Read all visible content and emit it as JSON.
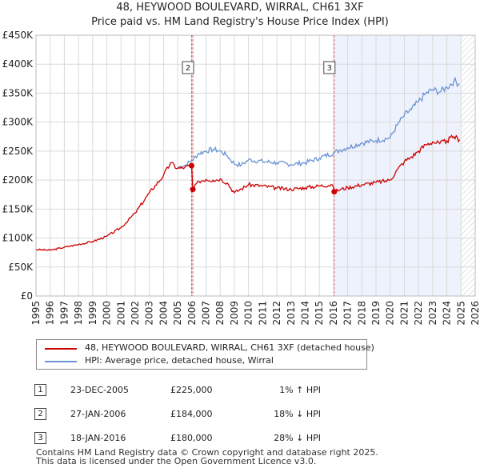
{
  "header": {
    "title": "48, HEYWOOD BOULEVARD, WIRRAL, CH61 3XF",
    "subtitle": "Price paid vs. HM Land Registry's House Price Index (HPI)"
  },
  "colors": {
    "property": "#cc0000",
    "hpi": "#6a93d4",
    "shade": "#eef2fd",
    "grid": "#d9d9d9",
    "marker": "#cc0000"
  },
  "chart_data": {
    "type": "line",
    "x_range": [
      1995,
      2026
    ],
    "y_range": [
      0,
      450000
    ],
    "y_ticks": [
      {
        "value": 0,
        "label": "£0"
      },
      {
        "value": 50000,
        "label": "£50K"
      },
      {
        "value": 100000,
        "label": "£100K"
      },
      {
        "value": 150000,
        "label": "£150K"
      },
      {
        "value": 200000,
        "label": "£200K"
      },
      {
        "value": 250000,
        "label": "£250K"
      },
      {
        "value": 300000,
        "label": "£300K"
      },
      {
        "value": 350000,
        "label": "£350K"
      },
      {
        "value": 400000,
        "label": "£400K"
      },
      {
        "value": 450000,
        "label": "£450K"
      }
    ],
    "x_ticks": [
      "1995",
      "1996",
      "1997",
      "1998",
      "1999",
      "2000",
      "2001",
      "2002",
      "2003",
      "2004",
      "2005",
      "2006",
      "2007",
      "2008",
      "2009",
      "2010",
      "2011",
      "2012",
      "2013",
      "2014",
      "2015",
      "2016",
      "2017",
      "2018",
      "2019",
      "2020",
      "2021",
      "2022",
      "2023",
      "2024",
      "2025",
      "2026"
    ],
    "shaded_from": 2016.05,
    "hatched_from": 2025.0,
    "series": [
      {
        "name": "48, HEYWOOD BOULEVARD, WIRRAL, CH61 3XF (detached house)",
        "key": "property",
        "points": [
          [
            1995,
            80000
          ],
          [
            1996,
            79000
          ],
          [
            1997,
            84000
          ],
          [
            1998,
            89000
          ],
          [
            1999,
            94000
          ],
          [
            2000,
            103000
          ],
          [
            2001,
            118000
          ],
          [
            2002,
            143000
          ],
          [
            2003,
            178000
          ],
          [
            2004,
            208000
          ],
          [
            2004.5,
            230000
          ],
          [
            2005,
            220000
          ],
          [
            2005.5,
            222000
          ],
          [
            2005.98,
            225000
          ],
          [
            2006.07,
            184000
          ],
          [
            2006.5,
            198000
          ],
          [
            2007,
            201000
          ],
          [
            2007.5,
            200000
          ],
          [
            2008,
            202000
          ],
          [
            2008.5,
            195000
          ],
          [
            2009,
            178000
          ],
          [
            2009.5,
            185000
          ],
          [
            2010,
            192000
          ],
          [
            2011,
            190000
          ],
          [
            2012,
            186000
          ],
          [
            2013,
            184000
          ],
          [
            2014,
            187000
          ],
          [
            2015,
            190000
          ],
          [
            2015.9,
            192000
          ],
          [
            2016.05,
            180000
          ],
          [
            2016.5,
            184000
          ],
          [
            2017,
            187000
          ],
          [
            2018,
            192000
          ],
          [
            2019,
            196000
          ],
          [
            2020,
            200000
          ],
          [
            2020.5,
            218000
          ],
          [
            2021,
            232000
          ],
          [
            2021.5,
            240000
          ],
          [
            2022,
            250000
          ],
          [
            2022.5,
            261000
          ],
          [
            2023,
            266000
          ],
          [
            2023.5,
            263000
          ],
          [
            2024,
            268000
          ],
          [
            2024.5,
            275000
          ],
          [
            2024.9,
            270000
          ]
        ]
      },
      {
        "name": "HPI: Average price, detached house, Wirral",
        "key": "hpi",
        "points": [
          [
            2005,
            222000
          ],
          [
            2005.5,
            225000
          ],
          [
            2006,
            234000
          ],
          [
            2006.5,
            246000
          ],
          [
            2007,
            250000
          ],
          [
            2007.5,
            253000
          ],
          [
            2008,
            250000
          ],
          [
            2008.5,
            242000
          ],
          [
            2009,
            228000
          ],
          [
            2009.5,
            226000
          ],
          [
            2010,
            235000
          ],
          [
            2011,
            232000
          ],
          [
            2012,
            230000
          ],
          [
            2013,
            227000
          ],
          [
            2014,
            230000
          ],
          [
            2015,
            238000
          ],
          [
            2016,
            247000
          ],
          [
            2016.5,
            252000
          ],
          [
            2017,
            256000
          ],
          [
            2018,
            264000
          ],
          [
            2019,
            268000
          ],
          [
            2020,
            273000
          ],
          [
            2020.5,
            295000
          ],
          [
            2021,
            312000
          ],
          [
            2021.5,
            322000
          ],
          [
            2022,
            335000
          ],
          [
            2022.5,
            349000
          ],
          [
            2023,
            356000
          ],
          [
            2023.5,
            352000
          ],
          [
            2024,
            360000
          ],
          [
            2024.5,
            371000
          ],
          [
            2024.9,
            366000
          ]
        ]
      }
    ],
    "markers": [
      {
        "label": "1",
        "year": 2005.98,
        "value": 225000
      },
      {
        "label": "2",
        "year": 2006.07,
        "value": 184000
      },
      {
        "label": "3",
        "year": 2016.05,
        "value": 180000
      }
    ],
    "marker_boxes": [
      "2",
      "3"
    ],
    "legend": {
      "property": "48, HEYWOOD BOULEVARD, WIRRAL, CH61 3XF (detached house)",
      "hpi": "HPI: Average price, detached house, Wirral"
    }
  },
  "transactions": [
    {
      "n": "1",
      "date": "23-DEC-2005",
      "price": "£225,000",
      "hpi": "1% ↑ HPI"
    },
    {
      "n": "2",
      "date": "27-JAN-2006",
      "price": "£184,000",
      "hpi": "18% ↓ HPI"
    },
    {
      "n": "3",
      "date": "18-JAN-2016",
      "price": "£180,000",
      "hpi": "28% ↓ HPI"
    }
  ],
  "footer": {
    "line1": "Contains HM Land Registry data © Crown copyright and database right 2025.",
    "line2": "This data is licensed under the Open Government Licence v3.0."
  }
}
